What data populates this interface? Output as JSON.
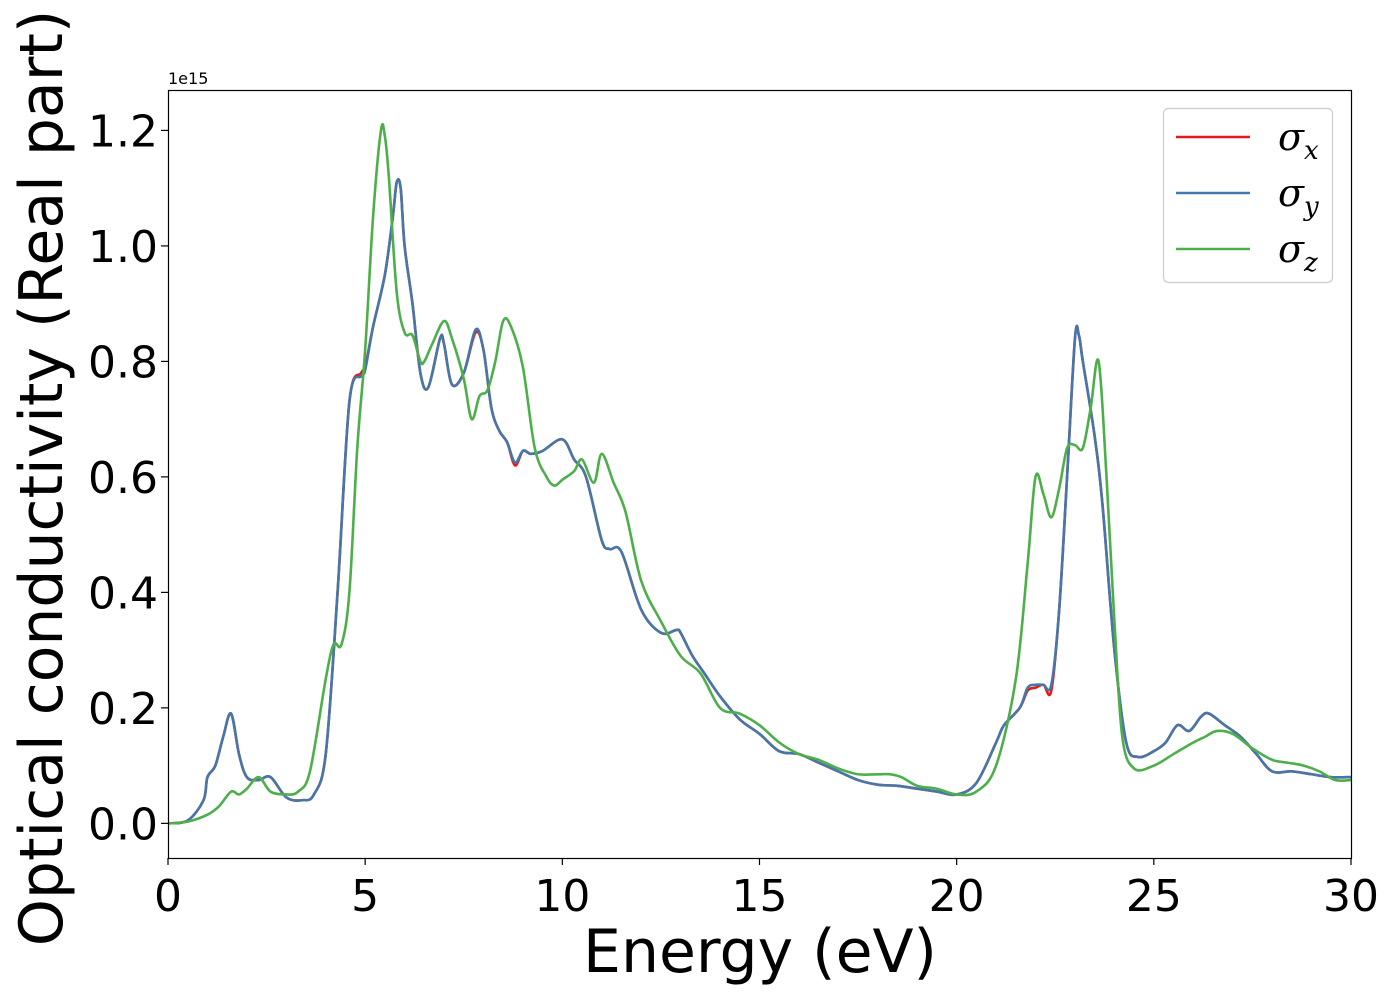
{
  "chart_data": {
    "type": "line",
    "title": "",
    "xlabel": "Energy (eV)",
    "ylabel": "Optical conductivity (Real part)",
    "y_offset_label": "1e15",
    "xlim": [
      0,
      30
    ],
    "ylim": [
      -0.06,
      1.27
    ],
    "xticks": [
      0,
      5,
      10,
      15,
      20,
      25,
      30
    ],
    "xtick_labels": [
      "0",
      "5",
      "10",
      "15",
      "20",
      "25",
      "30"
    ],
    "yticks": [
      0.0,
      0.2,
      0.4,
      0.6,
      0.8,
      1.0,
      1.2
    ],
    "ytick_labels": [
      "0.0",
      "0.2",
      "0.4",
      "0.6",
      "0.8",
      "1.0",
      "1.2"
    ],
    "grid": false,
    "legend_position": "top-right",
    "series": [
      {
        "name": "σx",
        "symbol": "σ",
        "subscript": "x",
        "color": "#e41a1c",
        "x": [
          0,
          0.5,
          0.9,
          1.0,
          1.2,
          1.4,
          1.6,
          1.8,
          2.0,
          2.3,
          2.6,
          3.0,
          3.4,
          3.7,
          4.0,
          4.3,
          4.6,
          4.9,
          5.0,
          5.2,
          5.5,
          5.7,
          5.8,
          5.9,
          6.0,
          6.2,
          6.4,
          6.6,
          6.9,
          7.0,
          7.2,
          7.5,
          7.8,
          8.0,
          8.2,
          8.4,
          8.6,
          8.8,
          9.0,
          9.2,
          9.5,
          10.0,
          10.3,
          10.6,
          11.0,
          11.2,
          11.5,
          12.0,
          12.5,
          12.9,
          13.0,
          13.3,
          13.6,
          14.0,
          14.5,
          15.0,
          15.5,
          16.0,
          16.5,
          17.0,
          17.5,
          18.0,
          18.5,
          19.0,
          19.5,
          20.0,
          20.5,
          21.0,
          21.2,
          21.6,
          21.8,
          22.0,
          22.2,
          22.4,
          22.6,
          22.8,
          23.0,
          23.1,
          23.2,
          23.5,
          23.7,
          24.0,
          24.3,
          24.6,
          25.0,
          25.3,
          25.6,
          25.9,
          26.2,
          26.4,
          26.8,
          27.2,
          27.6,
          28.0,
          28.5,
          29.0,
          29.5,
          30.0
        ],
        "values": [
          0,
          0.005,
          0.04,
          0.08,
          0.1,
          0.15,
          0.19,
          0.12,
          0.08,
          0.075,
          0.08,
          0.045,
          0.04,
          0.05,
          0.12,
          0.4,
          0.73,
          0.78,
          0.79,
          0.86,
          0.95,
          1.05,
          1.11,
          1.1,
          1.0,
          0.9,
          0.78,
          0.755,
          0.84,
          0.83,
          0.76,
          0.78,
          0.85,
          0.82,
          0.72,
          0.68,
          0.66,
          0.62,
          0.645,
          0.64,
          0.645,
          0.665,
          0.63,
          0.6,
          0.49,
          0.475,
          0.47,
          0.37,
          0.33,
          0.335,
          0.33,
          0.29,
          0.26,
          0.22,
          0.18,
          0.155,
          0.125,
          0.12,
          0.105,
          0.09,
          0.075,
          0.067,
          0.065,
          0.06,
          0.055,
          0.05,
          0.07,
          0.14,
          0.17,
          0.2,
          0.23,
          0.235,
          0.24,
          0.23,
          0.37,
          0.6,
          0.84,
          0.845,
          0.8,
          0.67,
          0.55,
          0.3,
          0.14,
          0.115,
          0.125,
          0.14,
          0.17,
          0.16,
          0.185,
          0.19,
          0.17,
          0.15,
          0.12,
          0.09,
          0.09,
          0.085,
          0.08,
          0.08
        ]
      },
      {
        "name": "σy",
        "symbol": "σ",
        "subscript": "y",
        "color": "#4477aa",
        "x": [
          0,
          0.5,
          0.9,
          1.0,
          1.2,
          1.4,
          1.6,
          1.8,
          2.0,
          2.3,
          2.6,
          3.0,
          3.4,
          3.7,
          4.0,
          4.3,
          4.6,
          4.9,
          5.0,
          5.2,
          5.5,
          5.7,
          5.8,
          5.9,
          6.0,
          6.2,
          6.4,
          6.6,
          6.9,
          7.0,
          7.2,
          7.5,
          7.8,
          8.0,
          8.2,
          8.4,
          8.6,
          8.8,
          9.0,
          9.2,
          9.5,
          10.0,
          10.3,
          10.6,
          11.0,
          11.2,
          11.5,
          12.0,
          12.5,
          12.9,
          13.0,
          13.3,
          13.6,
          14.0,
          14.5,
          15.0,
          15.5,
          16.0,
          16.5,
          17.0,
          17.5,
          18.0,
          18.5,
          19.0,
          19.5,
          20.0,
          20.5,
          21.0,
          21.2,
          21.6,
          21.8,
          22.0,
          22.2,
          22.4,
          22.6,
          22.8,
          23.0,
          23.1,
          23.2,
          23.5,
          23.7,
          24.0,
          24.3,
          24.6,
          25.0,
          25.3,
          25.6,
          25.9,
          26.2,
          26.4,
          26.8,
          27.2,
          27.6,
          28.0,
          28.5,
          29.0,
          29.5,
          30.0
        ],
        "values": [
          0,
          0.005,
          0.04,
          0.08,
          0.1,
          0.15,
          0.19,
          0.12,
          0.08,
          0.075,
          0.08,
          0.045,
          0.04,
          0.05,
          0.12,
          0.4,
          0.73,
          0.775,
          0.785,
          0.86,
          0.95,
          1.05,
          1.11,
          1.1,
          1.0,
          0.9,
          0.78,
          0.755,
          0.84,
          0.83,
          0.76,
          0.78,
          0.855,
          0.82,
          0.72,
          0.68,
          0.66,
          0.625,
          0.645,
          0.64,
          0.645,
          0.665,
          0.63,
          0.6,
          0.49,
          0.475,
          0.47,
          0.37,
          0.33,
          0.335,
          0.33,
          0.29,
          0.26,
          0.22,
          0.18,
          0.155,
          0.125,
          0.12,
          0.105,
          0.09,
          0.075,
          0.067,
          0.065,
          0.06,
          0.055,
          0.05,
          0.07,
          0.14,
          0.17,
          0.2,
          0.235,
          0.24,
          0.24,
          0.24,
          0.37,
          0.6,
          0.84,
          0.845,
          0.8,
          0.67,
          0.55,
          0.3,
          0.14,
          0.115,
          0.125,
          0.14,
          0.17,
          0.16,
          0.185,
          0.19,
          0.17,
          0.15,
          0.12,
          0.09,
          0.09,
          0.085,
          0.08,
          0.08
        ]
      },
      {
        "name": "σz",
        "symbol": "σ",
        "subscript": "z",
        "color": "#4daf4a",
        "x": [
          0,
          0.5,
          1.0,
          1.3,
          1.6,
          1.8,
          2.0,
          2.3,
          2.6,
          3.0,
          3.3,
          3.6,
          4.0,
          4.2,
          4.4,
          4.6,
          4.8,
          5.0,
          5.2,
          5.4,
          5.5,
          5.6,
          5.8,
          6.0,
          6.2,
          6.4,
          6.5,
          6.7,
          7.0,
          7.2,
          7.5,
          7.7,
          7.9,
          8.1,
          8.3,
          8.5,
          8.7,
          9.0,
          9.3,
          9.6,
          9.8,
          10.0,
          10.3,
          10.5,
          10.8,
          11.0,
          11.3,
          11.6,
          12.0,
          12.5,
          13.0,
          13.5,
          14.0,
          14.5,
          15.0,
          15.5,
          16.0,
          16.5,
          17.0,
          17.5,
          18.0,
          18.3,
          18.6,
          19.0,
          19.5,
          20.0,
          20.5,
          21.0,
          21.5,
          21.8,
          22.0,
          22.2,
          22.4,
          22.6,
          22.8,
          23.0,
          23.2,
          23.4,
          23.6,
          23.8,
          24.0,
          24.2,
          24.5,
          25.0,
          25.5,
          26.0,
          26.3,
          26.6,
          27.0,
          27.5,
          28.0,
          28.4,
          28.8,
          29.2,
          29.6,
          30.0
        ],
        "values": [
          0,
          0.003,
          0.015,
          0.03,
          0.055,
          0.05,
          0.06,
          0.08,
          0.055,
          0.05,
          0.055,
          0.09,
          0.25,
          0.31,
          0.31,
          0.4,
          0.65,
          0.82,
          1.05,
          1.2,
          1.19,
          1.12,
          0.92,
          0.85,
          0.845,
          0.8,
          0.8,
          0.83,
          0.87,
          0.84,
          0.77,
          0.7,
          0.74,
          0.75,
          0.8,
          0.87,
          0.86,
          0.79,
          0.65,
          0.6,
          0.585,
          0.595,
          0.61,
          0.63,
          0.59,
          0.64,
          0.59,
          0.54,
          0.42,
          0.35,
          0.29,
          0.26,
          0.2,
          0.19,
          0.17,
          0.14,
          0.12,
          0.11,
          0.095,
          0.085,
          0.085,
          0.085,
          0.08,
          0.065,
          0.06,
          0.05,
          0.055,
          0.1,
          0.25,
          0.45,
          0.6,
          0.57,
          0.53,
          0.58,
          0.65,
          0.655,
          0.65,
          0.72,
          0.8,
          0.6,
          0.35,
          0.15,
          0.095,
          0.1,
          0.12,
          0.14,
          0.15,
          0.16,
          0.155,
          0.13,
          0.11,
          0.105,
          0.1,
          0.09,
          0.075,
          0.075
        ]
      }
    ]
  }
}
